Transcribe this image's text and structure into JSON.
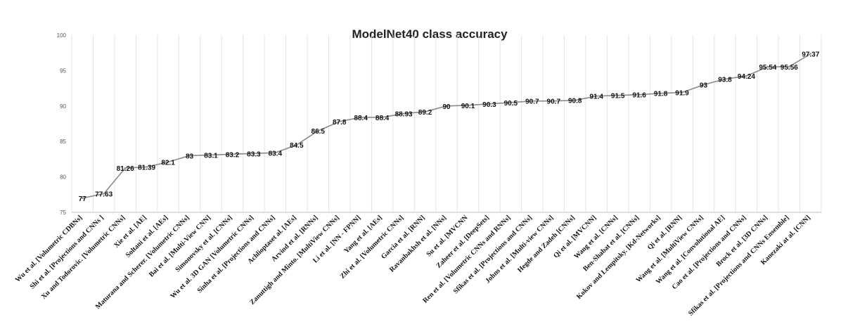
{
  "chart_data": {
    "type": "line",
    "title": "ModelNet40 class accuracy",
    "xlabel": "",
    "ylabel": "",
    "ylim": [
      75,
      100
    ],
    "yticks": [
      75,
      80,
      85,
      90,
      95,
      100
    ],
    "grid": "vertical",
    "legend": "none",
    "line_color": "#8a8a8a",
    "categories": [
      "Wu et al. [Volumetric CDBNs]",
      "Shi et al.  [Projections and CNNs ]",
      "Xu and Todorovic. [Volumetric CNNs]",
      "Xie et al.  [AE]",
      "Soltani et al. [AEs]",
      "Maturana and Scherer. [Volumetric CNNs]",
      "Bai et al. [Multi-View CNN]",
      "Simonovsky et al. [CNNs]",
      "Wu et al. 3D GAN [Volumetric CNNs]",
      "Sinha et al. [Projections and CNNs]",
      "Achlioptaset al. [AEs]",
      "Arvind et al. [RNNs]",
      "Zanuttigh and Minto. [MultiView CNNs]",
      "Li et al. [NN - FPNN]",
      "Yang et al. [AEs]",
      "Zhi et al. [Volumetric CNNs]",
      "Garcia et al. [RNN]",
      "Ravanbakhsh et al. [NNs]",
      "Su et al. [MVCNN",
      "Zaheer et al. [DeepSets]",
      "Ren et al. [Volumetric CNNs and RNNs]",
      "Sfikas et al. [Projections and CNNs]",
      "Johns et al. [Multi-view CNNs]",
      "Hegde and Zadeh [CNNs]",
      "Qi et al. [MVCNN]",
      "Wang et al. [CNNs]",
      "Ben-Shabat et al.  [CNNs]",
      "Kokov and Lempitsky. [Kd-Networks]",
      "Qi et al. [RNN]",
      "Wang et al. [MultiView CNNs]",
      "Wang et al. [Convolutional AE]",
      "Cao et al. [Projections and CNNs]",
      "Brock et al. [3D CNNs]",
      "Sfikas et al. [Projections and CNNs Ensemble]",
      "Kanezaki at al. [CNN]"
    ],
    "values": [
      77,
      77.63,
      81.26,
      81.39,
      82.1,
      83,
      83.1,
      83.2,
      83.3,
      83.4,
      84.5,
      86.5,
      87.8,
      88.4,
      88.4,
      88.93,
      89.2,
      90,
      90.1,
      90.3,
      90.5,
      90.7,
      90.7,
      90.8,
      91.4,
      91.5,
      91.6,
      91.8,
      91.9,
      93,
      93.8,
      94.24,
      95.54,
      95.56,
      97.37
    ],
    "data_labels": [
      "77",
      "77.63",
      "81.26",
      "81.39",
      "82.1",
      "83",
      "83.1",
      "83.2",
      "83.3",
      "83.4",
      "84.5",
      "86.5",
      "87.8",
      "88.4",
      "88.4",
      "88.93",
      "89.2",
      "90",
      "90.1",
      "90.3",
      "90.5",
      "90.7",
      "90.7",
      "90.8",
      "91.4",
      "91.5",
      "91.6",
      "91.8",
      "91.9",
      "93",
      "93.8",
      "94.24",
      "95.54",
      "95.56",
      "97.37"
    ]
  }
}
